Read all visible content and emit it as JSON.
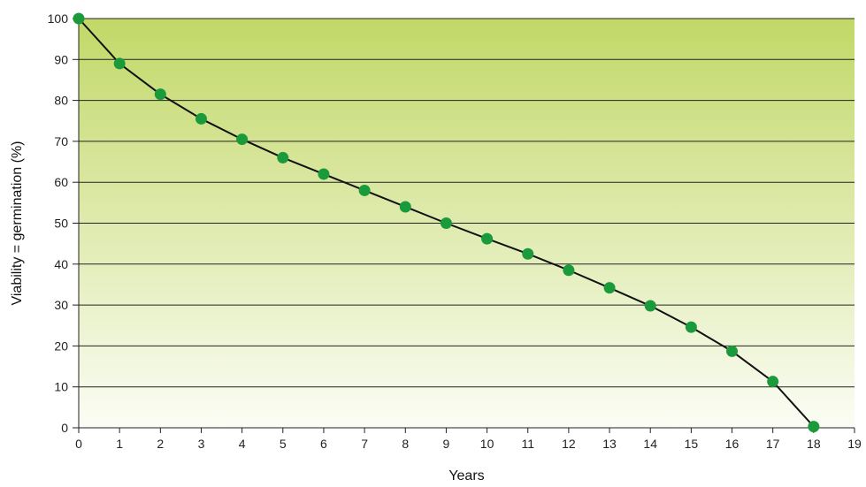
{
  "chart_data": {
    "type": "line",
    "title": "",
    "xlabel": "Years",
    "ylabel": "Viability = germination (%)",
    "xlim": [
      0,
      19
    ],
    "ylim": [
      0,
      100
    ],
    "x_ticks": [
      0,
      1,
      2,
      3,
      4,
      5,
      6,
      7,
      8,
      9,
      10,
      11,
      12,
      13,
      14,
      15,
      16,
      17,
      18,
      19
    ],
    "y_ticks": [
      0,
      10,
      20,
      30,
      40,
      50,
      60,
      70,
      80,
      90,
      100
    ],
    "grid": "horizontal",
    "legend": "none",
    "x": [
      0,
      1,
      2,
      3,
      4,
      5,
      6,
      7,
      8,
      9,
      10,
      11,
      12,
      13,
      14,
      15,
      16,
      17,
      18
    ],
    "series": [
      {
        "values": [
          100,
          89,
          81.5,
          75.5,
          70.5,
          66,
          62,
          58,
          54,
          50,
          46.2,
          42.5,
          38.5,
          34.2,
          29.8,
          24.6,
          18.7,
          11.3,
          0.3
        ]
      }
    ],
    "colors": {
      "plot_top": "#c2d867",
      "plot_bottom": "#fbfdf5",
      "line": "#111111",
      "marker": "#1a9a3b",
      "grid": "#222222"
    }
  }
}
